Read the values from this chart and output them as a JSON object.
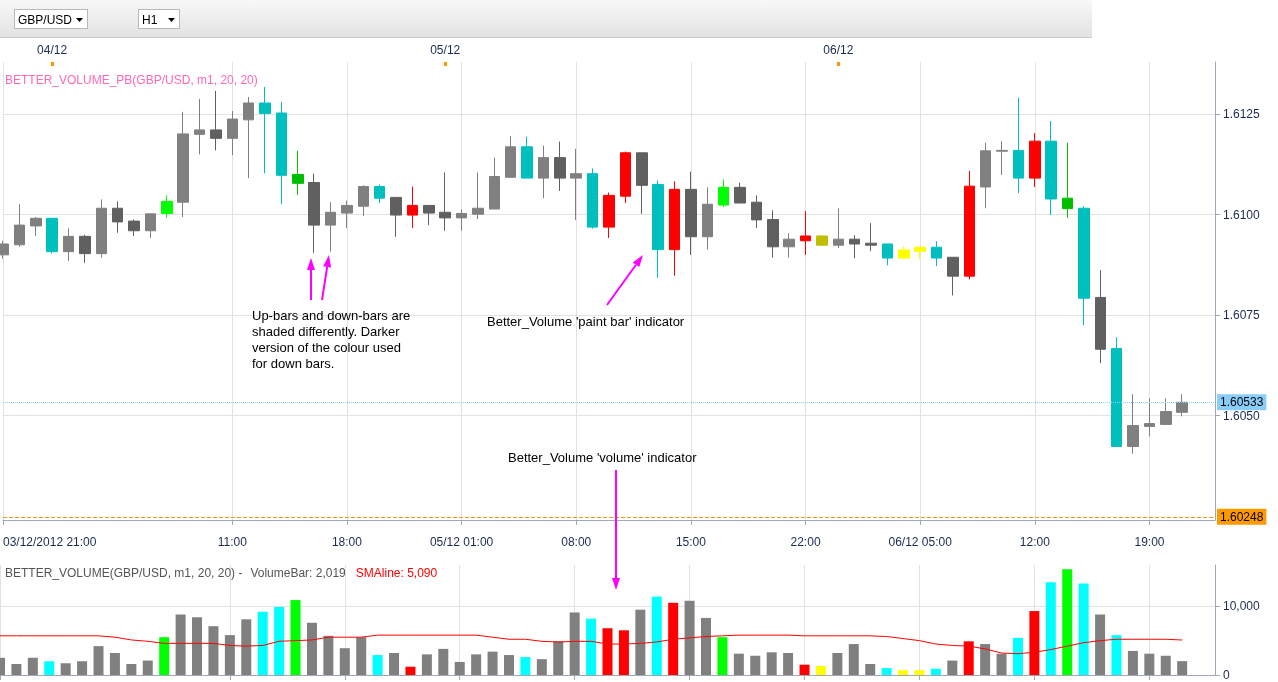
{
  "chart_data": [
    {
      "type": "candlestick",
      "title": "BETTER_VOLUME_PB(GBP/USD, m1, 20, 20)",
      "x": [
        "2012-12-03T21:00",
        "2012-12-03T22:00",
        "2012-12-03T23:00",
        "2012-12-04T00:00",
        "2012-12-04T01:00",
        "2012-12-04T02:00",
        "2012-12-04T03:00",
        "2012-12-04T04:00",
        "2012-12-04T05:00",
        "2012-12-04T06:00",
        "2012-12-04T07:00",
        "2012-12-04T08:00",
        "2012-12-04T09:00",
        "2012-12-04T10:00",
        "2012-12-04T11:00",
        "2012-12-04T12:00",
        "2012-12-04T13:00",
        "2012-12-04T14:00",
        "2012-12-04T15:00",
        "2012-12-04T16:00",
        "2012-12-04T17:00",
        "2012-12-04T18:00",
        "2012-12-04T19:00",
        "2012-12-04T20:00",
        "2012-12-04T21:00",
        "2012-12-04T22:00",
        "2012-12-04T23:00",
        "2012-12-05T00:00",
        "2012-12-05T01:00",
        "2012-12-05T02:00",
        "2012-12-05T03:00",
        "2012-12-05T04:00",
        "2012-12-05T05:00",
        "2012-12-05T06:00",
        "2012-12-05T07:00",
        "2012-12-05T08:00",
        "2012-12-05T09:00",
        "2012-12-05T10:00",
        "2012-12-05T11:00",
        "2012-12-05T12:00",
        "2012-12-05T13:00",
        "2012-12-05T14:00",
        "2012-12-05T15:00",
        "2012-12-05T16:00",
        "2012-12-05T17:00",
        "2012-12-05T18:00",
        "2012-12-05T19:00",
        "2012-12-05T20:00",
        "2012-12-05T21:00",
        "2012-12-05T22:00",
        "2012-12-05T23:00",
        "2012-12-06T00:00",
        "2012-12-06T01:00",
        "2012-12-06T02:00",
        "2012-12-06T03:00",
        "2012-12-06T04:00",
        "2012-12-06T05:00",
        "2012-12-06T06:00",
        "2012-12-06T07:00",
        "2012-12-06T08:00",
        "2012-12-06T09:00",
        "2012-12-06T10:00",
        "2012-12-06T11:00",
        "2012-12-06T12:00",
        "2012-12-06T13:00",
        "2012-12-06T14:00",
        "2012-12-06T15:00",
        "2012-12-06T16:00",
        "2012-12-06T17:00",
        "2012-12-06T18:00",
        "2012-12-06T19:00",
        "2012-12-06T20:00",
        "2012-12-06T21:00"
      ],
      "ohlc": [
        [
          1.609,
          1.60935,
          1.6089,
          1.60927
        ],
        [
          1.60925,
          1.61026,
          1.6092,
          1.60974
        ],
        [
          1.60972,
          1.60994,
          1.60947,
          1.60991
        ],
        [
          1.60991,
          1.60991,
          1.60903,
          1.60908
        ],
        [
          1.60908,
          1.60966,
          1.60885,
          1.60946
        ],
        [
          1.60946,
          1.6095,
          1.6088,
          1.60903
        ],
        [
          1.60903,
          1.61038,
          1.60893,
          1.61016
        ],
        [
          1.61016,
          1.61033,
          1.60955,
          1.60982
        ],
        [
          1.60984,
          1.60988,
          1.60947,
          1.6096
        ],
        [
          1.6096,
          1.61002,
          1.60942,
          1.61002
        ],
        [
          1.61003,
          1.61048,
          1.60992,
          1.61033
        ],
        [
          1.61031,
          1.61256,
          1.60994,
          1.61201
        ],
        [
          1.612,
          1.61288,
          1.6115,
          1.61211
        ],
        [
          1.61211,
          1.61308,
          1.6116,
          1.6119
        ],
        [
          1.6119,
          1.61258,
          1.61148,
          1.61238
        ],
        [
          1.61236,
          1.61293,
          1.61091,
          1.61278
        ],
        [
          1.61278,
          1.61318,
          1.61103,
          1.61252
        ],
        [
          1.61253,
          1.61281,
          1.61026,
          1.61098
        ],
        [
          1.611,
          1.61159,
          1.61049,
          1.61078
        ],
        [
          1.6108,
          1.61102,
          1.60905,
          1.60974
        ],
        [
          1.60974,
          1.61031,
          1.60908,
          1.61006
        ],
        [
          1.61004,
          1.61035,
          1.60967,
          1.61023
        ],
        [
          1.61021,
          1.61073,
          1.60997,
          1.6107
        ],
        [
          1.6107,
          1.61075,
          1.61029,
          1.61041
        ],
        [
          1.61043,
          1.61043,
          1.60945,
          1.60999
        ],
        [
          1.61023,
          1.6107,
          1.60967,
          1.60999
        ],
        [
          1.61023,
          1.61023,
          1.60974,
          1.61004
        ],
        [
          1.61006,
          1.61105,
          1.6096,
          1.60992
        ],
        [
          1.60992,
          1.61013,
          1.6096,
          1.61003
        ],
        [
          1.61001,
          1.61105,
          1.60989,
          1.61016
        ],
        [
          1.61014,
          1.61142,
          1.61014,
          1.61095
        ],
        [
          1.61093,
          1.61196,
          1.61093,
          1.61169
        ],
        [
          1.61169,
          1.61194,
          1.61091,
          1.61091
        ],
        [
          1.61091,
          1.61172,
          1.61041,
          1.61142
        ],
        [
          1.61142,
          1.61182,
          1.61059,
          1.61091
        ],
        [
          1.61091,
          1.61164,
          1.60987,
          1.61102
        ],
        [
          1.61102,
          1.61115,
          1.60965,
          1.60969
        ],
        [
          1.60969,
          1.61055,
          1.60942,
          1.61048
        ],
        [
          1.61046,
          1.61157,
          1.61029,
          1.61154
        ],
        [
          1.61154,
          1.61154,
          1.61002,
          1.61073
        ],
        [
          1.61075,
          1.61085,
          1.60843,
          1.60913
        ],
        [
          1.60913,
          1.61083,
          1.60848,
          1.61063
        ],
        [
          1.61063,
          1.61107,
          1.609,
          1.60945
        ],
        [
          1.60945,
          1.61068,
          1.60913,
          1.61026
        ],
        [
          1.61024,
          1.61088,
          1.61019,
          1.61068
        ],
        [
          1.61068,
          1.6108,
          1.61029,
          1.61029
        ],
        [
          1.61031,
          1.61048,
          1.60967,
          1.60987
        ],
        [
          1.60988,
          1.61011,
          1.60893,
          1.6092
        ],
        [
          1.6092,
          1.60954,
          1.60893,
          1.60939
        ],
        [
          1.60947,
          1.61009,
          1.609,
          1.60935
        ],
        [
          1.60947,
          1.60949,
          1.60922,
          1.60924
        ],
        [
          1.60924,
          1.61016,
          1.60917,
          1.60939
        ],
        [
          1.60939,
          1.60949,
          1.60892,
          1.60927
        ],
        [
          1.60929,
          1.60979,
          1.60909,
          1.60924
        ],
        [
          1.60927,
          1.60927,
          1.60874,
          1.60892
        ],
        [
          1.60892,
          1.60922,
          1.60889,
          1.60912
        ],
        [
          1.60909,
          1.60919,
          1.60889,
          1.60919
        ],
        [
          1.60919,
          1.60934,
          1.60872,
          1.60892
        ],
        [
          1.60894,
          1.60894,
          1.60799,
          1.60847
        ],
        [
          1.60847,
          1.61109,
          1.60839,
          1.61071
        ],
        [
          1.61069,
          1.61179,
          1.61016,
          1.61159
        ],
        [
          1.61158,
          1.61183,
          1.61099,
          1.6116
        ],
        [
          1.6116,
          1.61291,
          1.61054,
          1.61091
        ],
        [
          1.61091,
          1.61203,
          1.61069,
          1.61183
        ],
        [
          1.61183,
          1.61233,
          1.60999,
          1.61039
        ],
        [
          1.61041,
          1.61179,
          1.60992,
          1.61015
        ],
        [
          1.61016,
          1.61021,
          1.60725,
          1.60792
        ],
        [
          1.60794,
          1.60862,
          1.6063,
          1.60665
        ],
        [
          1.60667,
          1.60695,
          1.60423,
          1.60423
        ],
        [
          1.60423,
          1.60553,
          1.60405,
          1.60475
        ],
        [
          1.60473,
          1.60543,
          1.60448,
          1.6048
        ],
        [
          1.60478,
          1.60543,
          1.60478,
          1.6051
        ],
        [
          1.60508,
          1.60553,
          1.60498,
          1.60533
        ]
      ],
      "colors": [
        "#808080",
        "#808080",
        "#808080",
        "#00bfbf",
        "#808080",
        "#606060",
        "#808080",
        "#606060",
        "#606060",
        "#808080",
        "#00ff00",
        "#808080",
        "#808080",
        "#606060",
        "#808080",
        "#808080",
        "#00bfbf",
        "#00bfbf",
        "#00bf00",
        "#606060",
        "#808080",
        "#808080",
        "#808080",
        "#00bfbf",
        "#606060",
        "#ff0000",
        "#606060",
        "#606060",
        "#808080",
        "#808080",
        "#808080",
        "#808080",
        "#00bfbf",
        "#808080",
        "#606060",
        "#808080",
        "#00bfbf",
        "#ff0000",
        "#ff0000",
        "#606060",
        "#00bfbf",
        "#ff0000",
        "#606060",
        "#808080",
        "#00ff00",
        "#606060",
        "#606060",
        "#606060",
        "#808080",
        "#ff0000",
        "#bfbf00",
        "#808080",
        "#606060",
        "#606060",
        "#00bfbf",
        "#ffff00",
        "#ffff00",
        "#00bfbf",
        "#606060",
        "#ff0000",
        "#808080",
        "#808080",
        "#00bfbf",
        "#ff0000",
        "#00bfbf",
        "#00bf00",
        "#00bfbf",
        "#606060",
        "#00bfbf",
        "#808080",
        "#808080",
        "#808080",
        "#808080"
      ],
      "xlim": [
        "2012-12-03T21:00",
        "2012-12-06T23:00"
      ],
      "xticks": [
        {
          "value": "2012-12-03T21:00",
          "label": "03/12/2012 21:00"
        },
        {
          "value": "2012-12-04T11:00",
          "label": "11:00"
        },
        {
          "value": "2012-12-04T18:00",
          "label": "18:00"
        },
        {
          "value": "2012-12-05T01:00",
          "label": "05/12 01:00"
        },
        {
          "value": "2012-12-05T08:00",
          "label": "08:00"
        },
        {
          "value": "2012-12-05T15:00",
          "label": "15:00"
        },
        {
          "value": "2012-12-05T22:00",
          "label": "22:00"
        },
        {
          "value": "2012-12-06T05:00",
          "label": "06/12 05:00"
        },
        {
          "value": "2012-12-06T12:00",
          "label": "12:00"
        },
        {
          "value": "2012-12-06T19:00",
          "label": "19:00"
        }
      ],
      "x2lim": [
        "2012-12-03T21:00",
        "2012-12-06T23:00"
      ],
      "x2ticks": [
        {
          "value": "2012-12-04T00:00",
          "label": "04/12"
        },
        {
          "value": "2012-12-05T00:00",
          "label": "05/12"
        },
        {
          "value": "2012-12-06T00:00",
          "label": "06/12"
        }
      ],
      "ylim": [
        1.6024,
        1.6138
      ],
      "yticks": [
        {
          "value": 1.605,
          "label": "1.6050"
        },
        {
          "value": 1.6075,
          "label": "1.6075"
        },
        {
          "value": 1.61,
          "label": "1.6100"
        },
        {
          "value": 1.6125,
          "label": "1.6125"
        }
      ],
      "grid": true,
      "ref_lines": [
        {
          "axis": "y",
          "value": 1.60533,
          "label": "1.60533",
          "color": "#87cefa",
          "line_style": "dotted"
        },
        {
          "axis": "y",
          "value": 1.60248,
          "label": "1.60248",
          "color": "#ff9900",
          "line_style": "dashed"
        }
      ],
      "annotations": [
        "Up-bars and down-bars are shaded differently. Darker version of the colour used for down bars.",
        "Better_Volume 'paint bar' indicator",
        "Better_Volume 'volume' indicator",
        "GBP/USD",
        "H1"
      ]
    },
    {
      "type": "bar",
      "title": "BETTER_VOLUME(GBP/USD, m1, 20, 20) -",
      "x": [
        "2012-12-03T21:00",
        "2012-12-03T22:00",
        "2012-12-03T23:00",
        "2012-12-04T00:00",
        "2012-12-04T01:00",
        "2012-12-04T02:00",
        "2012-12-04T03:00",
        "2012-12-04T04:00",
        "2012-12-04T05:00",
        "2012-12-04T06:00",
        "2012-12-04T07:00",
        "2012-12-04T08:00",
        "2012-12-04T09:00",
        "2012-12-04T10:00",
        "2012-12-04T11:00",
        "2012-12-04T12:00",
        "2012-12-04T13:00",
        "2012-12-04T14:00",
        "2012-12-04T15:00",
        "2012-12-04T16:00",
        "2012-12-04T17:00",
        "2012-12-04T18:00",
        "2012-12-04T19:00",
        "2012-12-04T20:00",
        "2012-12-04T21:00",
        "2012-12-04T22:00",
        "2012-12-04T23:00",
        "2012-12-05T00:00",
        "2012-12-05T01:00",
        "2012-12-05T02:00",
        "2012-12-05T03:00",
        "2012-12-05T04:00",
        "2012-12-05T05:00",
        "2012-12-05T06:00",
        "2012-12-05T07:00",
        "2012-12-05T08:00",
        "2012-12-05T09:00",
        "2012-12-05T10:00",
        "2012-12-05T11:00",
        "2012-12-05T12:00",
        "2012-12-05T13:00",
        "2012-12-05T14:00",
        "2012-12-05T15:00",
        "2012-12-05T16:00",
        "2012-12-05T17:00",
        "2012-12-05T18:00",
        "2012-12-05T19:00",
        "2012-12-05T20:00",
        "2012-12-05T21:00",
        "2012-12-05T22:00",
        "2012-12-05T23:00",
        "2012-12-06T00:00",
        "2012-12-06T01:00",
        "2012-12-06T02:00",
        "2012-12-06T03:00",
        "2012-12-06T04:00",
        "2012-12-06T05:00",
        "2012-12-06T06:00",
        "2012-12-06T07:00",
        "2012-12-06T08:00",
        "2012-12-06T09:00",
        "2012-12-06T10:00",
        "2012-12-06T11:00",
        "2012-12-06T12:00",
        "2012-12-06T13:00",
        "2012-12-06T14:00",
        "2012-12-06T15:00",
        "2012-12-06T16:00",
        "2012-12-06T17:00",
        "2012-12-06T18:00",
        "2012-12-06T19:00",
        "2012-12-06T20:00",
        "2012-12-06T21:00"
      ],
      "series": [
        {
          "color": "#808080",
          "values": [
            2500,
            1600,
            2500,
            2000,
            1700,
            2000,
            4200,
            3200,
            1600,
            2100,
            5500,
            8800,
            8400,
            7100,
            5800,
            8100,
            9200,
            9900,
            10900,
            7600,
            5700,
            3900,
            5500,
            2900,
            3200,
            1200,
            3000,
            3800,
            1900,
            3000,
            3400,
            2900,
            2600,
            2300,
            4900,
            9100,
            8200,
            6800,
            6500,
            9500,
            11400,
            10500,
            10800,
            8300,
            5500,
            3100,
            2800,
            3300,
            3200,
            1500,
            1300,
            3200,
            4500,
            1600,
            1000,
            700,
            700,
            900,
            2100,
            4900,
            4500,
            3100,
            5400,
            9300,
            13500,
            15400,
            13300,
            8800,
            5800,
            3500,
            3100,
            2800,
            2019
          ],
          "colors": [
            "#808080",
            "#808080",
            "#808080",
            "#00ffff",
            "#808080",
            "#808080",
            "#808080",
            "#808080",
            "#808080",
            "#808080",
            "#00ff00",
            "#808080",
            "#808080",
            "#808080",
            "#808080",
            "#808080",
            "#00ffff",
            "#00ffff",
            "#00ff00",
            "#808080",
            "#808080",
            "#808080",
            "#808080",
            "#00ffff",
            "#808080",
            "#ff0000",
            "#808080",
            "#808080",
            "#808080",
            "#808080",
            "#808080",
            "#808080",
            "#00ffff",
            "#808080",
            "#808080",
            "#808080",
            "#00ffff",
            "#ff0000",
            "#ff0000",
            "#808080",
            "#00ffff",
            "#ff0000",
            "#808080",
            "#808080",
            "#00ff00",
            "#808080",
            "#808080",
            "#808080",
            "#808080",
            "#ff0000",
            "#ffff00",
            "#808080",
            "#808080",
            "#808080",
            "#00ffff",
            "#ffff00",
            "#ffff00",
            "#00ffff",
            "#808080",
            "#ff0000",
            "#808080",
            "#808080",
            "#00ffff",
            "#ff0000",
            "#00ffff",
            "#00ff00",
            "#00ffff",
            "#808080",
            "#00ffff",
            "#808080",
            "#808080",
            "#808080",
            "#808080"
          ]
        },
        {
          "type": "line",
          "color": "#ff0000",
          "values": [
            5700,
            5700,
            5700,
            5700,
            5700,
            5700,
            5700,
            5500,
            5100,
            4900,
            4600,
            4600,
            4600,
            4600,
            4300,
            4200,
            4300,
            4900,
            5000,
            5100,
            5500,
            5500,
            5500,
            5800,
            5800,
            5800,
            5800,
            5800,
            5800,
            5800,
            5500,
            5200,
            5200,
            4900,
            4800,
            4900,
            4900,
            4500,
            4500,
            4600,
            4800,
            5200,
            5400,
            5600,
            5700,
            5800,
            5800,
            5800,
            5800,
            5700,
            5700,
            5700,
            5700,
            5700,
            5600,
            5300,
            5000,
            4500,
            4300,
            4200,
            3800,
            3200,
            3100,
            3300,
            3700,
            4200,
            4700,
            5000,
            5200,
            5200,
            5200,
            5200,
            5090
          ]
        }
      ],
      "annotations": [
        "VolumeBar: 2,019",
        "SMAline: 5,090"
      ],
      "xlim": [
        "2012-12-03T21:00",
        "2012-12-06T23:00"
      ],
      "xticks": [
        {
          "value": "2012-12-03T21:00",
          "label": null
        },
        {
          "value": "2012-12-04T11:00",
          "label": null
        },
        {
          "value": "2012-12-04T18:00",
          "label": null
        },
        {
          "value": "2012-12-05T01:00",
          "label": null
        },
        {
          "value": "2012-12-05T08:00",
          "label": null
        },
        {
          "value": "2012-12-05T15:00",
          "label": null
        },
        {
          "value": "2012-12-05T22:00",
          "label": null
        },
        {
          "value": "2012-12-06T05:00",
          "label": null
        },
        {
          "value": "2012-12-06T12:00",
          "label": null
        },
        {
          "value": "2012-12-06T19:00",
          "label": null
        }
      ],
      "ylim": [
        0,
        16000
      ],
      "yticks": [
        {
          "value": 0,
          "label": "0"
        },
        {
          "value": 10000,
          "label": "10,000"
        }
      ],
      "grid": true,
      "tick_labels": "y"
    }
  ]
}
